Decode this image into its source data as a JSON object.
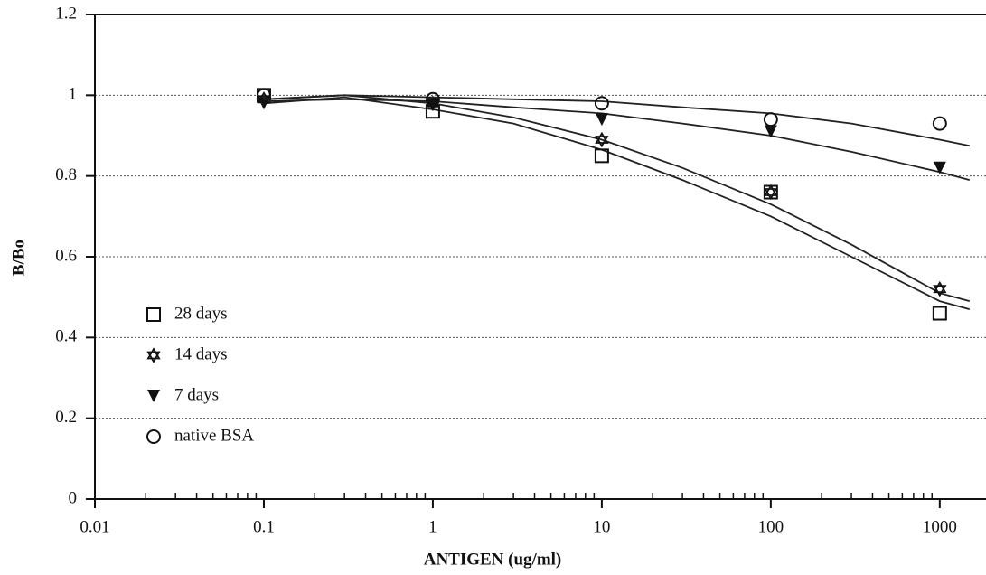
{
  "chart_data": {
    "type": "scatter",
    "xlabel": "ANTIGEN (ug/ml)",
    "ylabel": "B/Bo",
    "x": [
      0.1,
      1,
      10,
      100,
      1000
    ],
    "fit_x": [
      0.1,
      0.3,
      1,
      3,
      10,
      30,
      100,
      300,
      1000,
      1500
    ],
    "series": [
      {
        "name": "28 days",
        "marker": "square",
        "color": "#111111",
        "values": [
          1.0,
          0.96,
          0.85,
          0.76,
          0.46
        ],
        "fit": [
          0.98,
          0.995,
          0.965,
          0.93,
          0.865,
          0.79,
          0.7,
          0.6,
          0.49,
          0.47
        ]
      },
      {
        "name": "14 days",
        "marker": "star",
        "color": "#111111",
        "values": [
          0.99,
          0.98,
          0.89,
          0.76,
          0.52
        ],
        "fit": [
          0.99,
          1.0,
          0.98,
          0.945,
          0.89,
          0.82,
          0.73,
          0.63,
          0.51,
          0.49
        ]
      },
      {
        "name": "7 days",
        "marker": "triangle",
        "color": "#111111",
        "values": [
          0.98,
          0.98,
          0.94,
          0.91,
          0.82
        ],
        "fit": [
          0.985,
          0.99,
          0.985,
          0.97,
          0.955,
          0.93,
          0.9,
          0.86,
          0.81,
          0.79
        ]
      },
      {
        "name": "native BSA",
        "marker": "circle",
        "color": "#111111",
        "values": [
          1.0,
          0.99,
          0.98,
          0.94,
          0.93
        ],
        "fit": [
          0.99,
          1.0,
          0.995,
          0.99,
          0.985,
          0.97,
          0.955,
          0.93,
          0.89,
          0.875
        ]
      }
    ],
    "xscale": "log",
    "xlim": [
      0.01,
      1600
    ],
    "xticks": [
      0.01,
      0.1,
      1,
      10,
      100,
      1000
    ],
    "ylim": [
      0,
      1.2
    ],
    "yticks": [
      0,
      0.2,
      0.4,
      0.6,
      0.8,
      1,
      1.2
    ],
    "grid": true,
    "legend": "lower left"
  }
}
